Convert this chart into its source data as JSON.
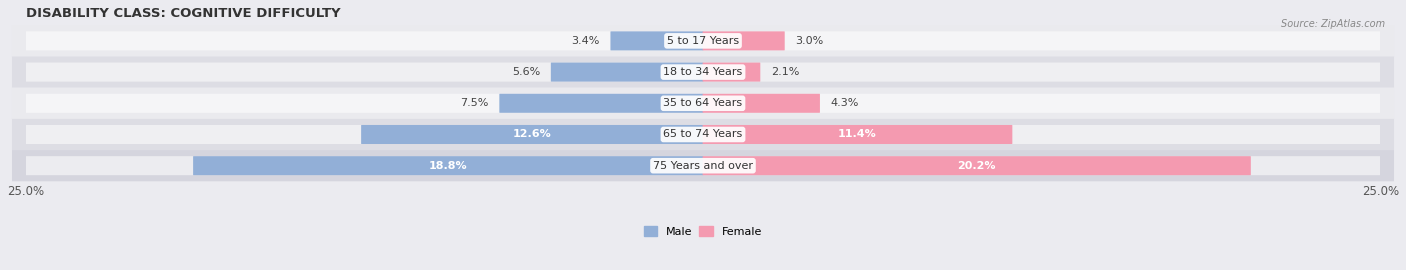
{
  "title": "DISABILITY CLASS: COGNITIVE DIFFICULTY",
  "source": "Source: ZipAtlas.com",
  "categories": [
    "5 to 17 Years",
    "18 to 34 Years",
    "35 to 64 Years",
    "65 to 74 Years",
    "75 Years and over"
  ],
  "male_values": [
    3.4,
    5.6,
    7.5,
    12.6,
    18.8
  ],
  "female_values": [
    3.0,
    2.1,
    4.3,
    11.4,
    20.2
  ],
  "male_color": "#92afd7",
  "female_color": "#f49ab0",
  "row_colors": [
    "#eaeaee",
    "#dddde4",
    "#eaeaee",
    "#dddde4",
    "#d5d5de"
  ],
  "bar_bg_color": "#e2e2ea",
  "max_value": 25.0,
  "title_fontsize": 9.5,
  "label_fontsize": 8,
  "tick_fontsize": 8.5,
  "bar_height": 0.58,
  "bg_color": "#ebebf0"
}
